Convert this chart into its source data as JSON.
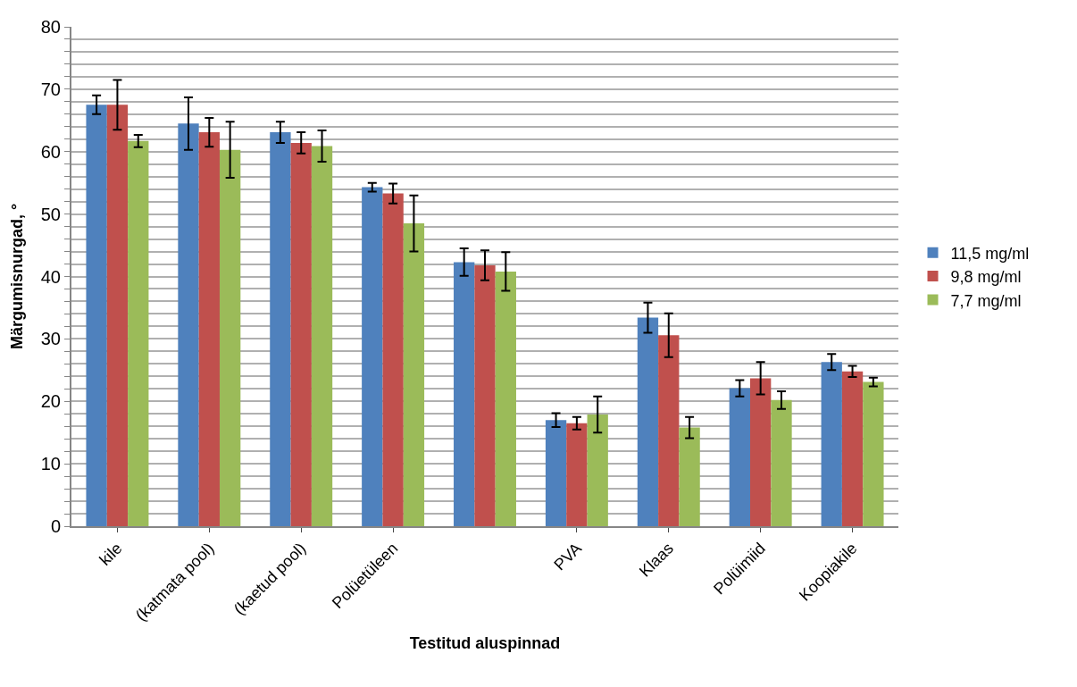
{
  "chart_data": {
    "type": "bar",
    "xlabel": "Testitud aluspinnad",
    "ylabel": "Märgumisnurgad, °",
    "categories": [
      "kile",
      "(katmata pool)",
      "(kaetud pool)",
      "Polüetüleen",
      null,
      "PVA",
      "Klaas",
      "Polüimiid",
      "Koopiakile"
    ],
    "series": [
      {
        "name": "11,5 mg/ml",
        "color": "#4f81bd",
        "values": [
          67.5,
          64.5,
          63.1,
          54.3,
          42.3,
          17.0,
          33.4,
          22.1,
          26.3
        ],
        "errors": [
          1.5,
          4.2,
          1.7,
          0.7,
          2.2,
          1.1,
          2.4,
          1.3,
          1.3
        ]
      },
      {
        "name": "9,8 mg/ml",
        "color": "#c0504d",
        "values": [
          67.5,
          63.1,
          61.4,
          53.3,
          41.8,
          16.5,
          30.6,
          23.7,
          24.8
        ],
        "errors": [
          4.0,
          2.3,
          1.7,
          1.6,
          2.4,
          1.0,
          3.5,
          2.6,
          0.9
        ]
      },
      {
        "name": "7,7 mg/ml",
        "color": "#9bbb59",
        "values": [
          61.7,
          60.3,
          60.9,
          48.5,
          40.8,
          17.9,
          15.8,
          20.2,
          23.1
        ],
        "errors": [
          1.0,
          4.5,
          2.5,
          4.5,
          3.1,
          2.9,
          1.7,
          1.4,
          0.7
        ]
      }
    ],
    "ylim": [
      0,
      80
    ],
    "yticks": [
      0,
      {
        "value": 2,
        "label": null
      },
      {
        "value": 4,
        "label": null
      },
      {
        "value": 6,
        "label": null
      },
      {
        "value": 8,
        "label": null
      },
      10,
      {
        "value": 12,
        "label": null
      },
      {
        "value": 14,
        "label": null
      },
      {
        "value": 16,
        "label": null
      },
      {
        "value": 18,
        "label": null
      },
      20,
      {
        "value": 22,
        "label": null
      },
      {
        "value": 24,
        "label": null
      },
      {
        "value": 26,
        "label": null
      },
      {
        "value": 28,
        "label": null
      },
      30,
      {
        "value": 32,
        "label": null
      },
      {
        "value": 34,
        "label": null
      },
      {
        "value": 36,
        "label": null
      },
      {
        "value": 38,
        "label": null
      },
      40,
      {
        "value": 42,
        "label": null
      },
      {
        "value": 44,
        "label": null
      },
      {
        "value": 46,
        "label": null
      },
      {
        "value": 48,
        "label": null
      },
      50,
      {
        "value": 52,
        "label": null
      },
      {
        "value": 54,
        "label": null
      },
      {
        "value": 56,
        "label": null
      },
      {
        "value": 58,
        "label": null
      },
      60,
      {
        "value": 62,
        "label": null
      },
      {
        "value": 64,
        "label": null
      },
      {
        "value": 66,
        "label": null
      },
      {
        "value": 68,
        "label": null
      },
      70,
      {
        "value": 72,
        "label": null
      },
      {
        "value": 74,
        "label": null
      },
      {
        "value": 76,
        "label": null
      },
      {
        "value": 78,
        "label": null
      },
      80
    ],
    "grid": "y",
    "legend": "right"
  }
}
